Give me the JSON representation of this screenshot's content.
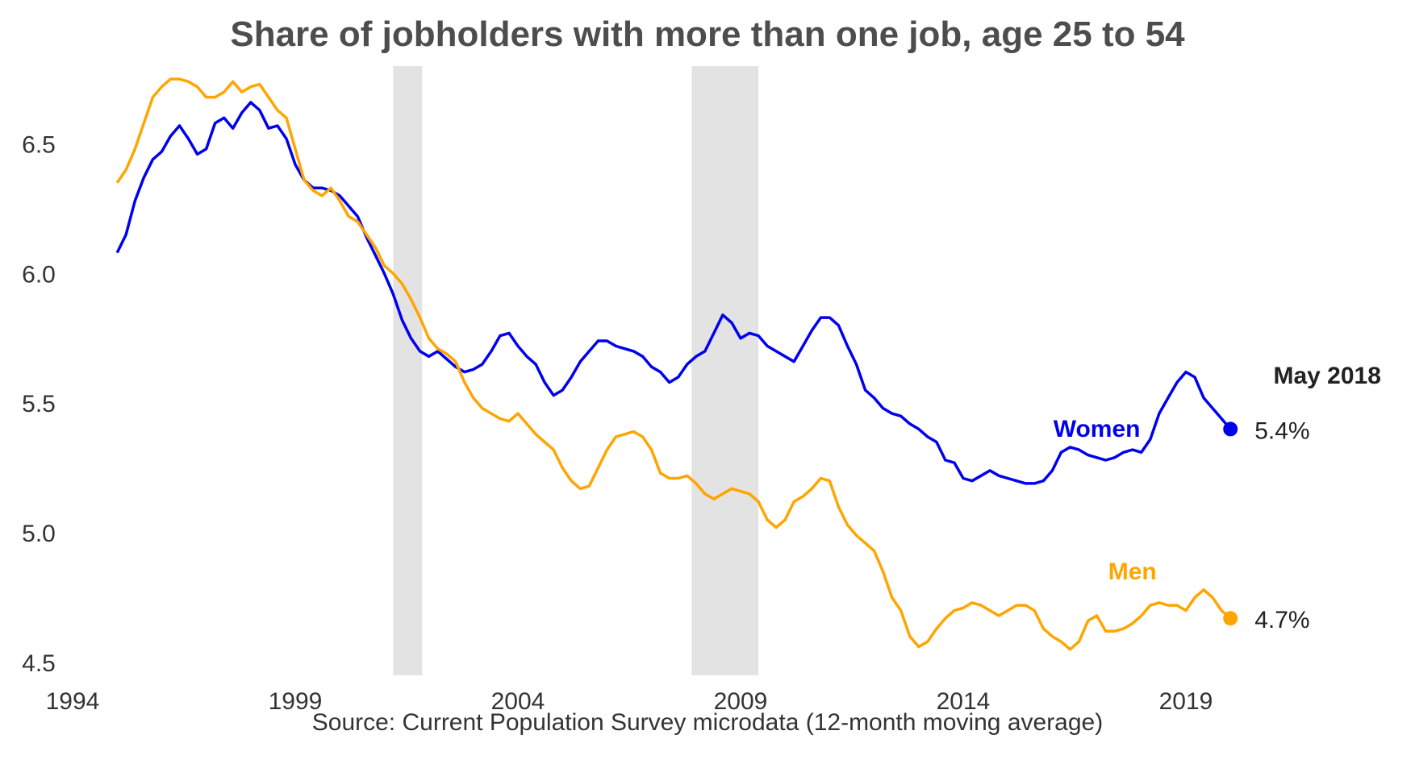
{
  "chart_data": {
    "type": "line",
    "title": "Share of jobholders with more than one job, age 25 to 54",
    "source": "Source: Current Population Survey microdata (12-month moving average)",
    "xlim": [
      1994,
      2019
    ],
    "ylim": [
      4.45,
      6.8
    ],
    "x_ticks": [
      1994,
      1999,
      2004,
      2009,
      2014,
      2019
    ],
    "y_ticks": [
      4.5,
      5.0,
      5.5,
      6.0,
      6.5
    ],
    "grid": false,
    "recessions": [
      [
        2001.2,
        2001.85
      ],
      [
        2007.9,
        2009.4
      ]
    ],
    "annotation": "May 2018",
    "series": [
      {
        "name": "Women",
        "color": "#0000ee",
        "end_label": "5.4%",
        "points": [
          [
            1995.0,
            6.08
          ],
          [
            1995.2,
            6.15
          ],
          [
            1995.4,
            6.28
          ],
          [
            1995.6,
            6.37
          ],
          [
            1995.8,
            6.44
          ],
          [
            1996.0,
            6.47
          ],
          [
            1996.2,
            6.53
          ],
          [
            1996.4,
            6.57
          ],
          [
            1996.6,
            6.52
          ],
          [
            1996.8,
            6.46
          ],
          [
            1997.0,
            6.48
          ],
          [
            1997.2,
            6.58
          ],
          [
            1997.4,
            6.6
          ],
          [
            1997.6,
            6.56
          ],
          [
            1997.8,
            6.62
          ],
          [
            1998.0,
            6.66
          ],
          [
            1998.2,
            6.63
          ],
          [
            1998.4,
            6.56
          ],
          [
            1998.6,
            6.57
          ],
          [
            1998.8,
            6.52
          ],
          [
            1999.0,
            6.42
          ],
          [
            1999.2,
            6.36
          ],
          [
            1999.4,
            6.33
          ],
          [
            1999.6,
            6.33
          ],
          [
            1999.8,
            6.32
          ],
          [
            2000.0,
            6.3
          ],
          [
            2000.2,
            6.26
          ],
          [
            2000.4,
            6.22
          ],
          [
            2000.6,
            6.14
          ],
          [
            2000.8,
            6.07
          ],
          [
            2001.0,
            6.0
          ],
          [
            2001.2,
            5.92
          ],
          [
            2001.4,
            5.82
          ],
          [
            2001.6,
            5.75
          ],
          [
            2001.8,
            5.7
          ],
          [
            2002.0,
            5.68
          ],
          [
            2002.2,
            5.7
          ],
          [
            2002.4,
            5.67
          ],
          [
            2002.6,
            5.64
          ],
          [
            2002.8,
            5.62
          ],
          [
            2003.0,
            5.63
          ],
          [
            2003.2,
            5.65
          ],
          [
            2003.4,
            5.7
          ],
          [
            2003.6,
            5.76
          ],
          [
            2003.8,
            5.77
          ],
          [
            2004.0,
            5.72
          ],
          [
            2004.2,
            5.68
          ],
          [
            2004.4,
            5.65
          ],
          [
            2004.6,
            5.58
          ],
          [
            2004.8,
            5.53
          ],
          [
            2005.0,
            5.55
          ],
          [
            2005.2,
            5.6
          ],
          [
            2005.4,
            5.66
          ],
          [
            2005.6,
            5.7
          ],
          [
            2005.8,
            5.74
          ],
          [
            2006.0,
            5.74
          ],
          [
            2006.2,
            5.72
          ],
          [
            2006.4,
            5.71
          ],
          [
            2006.6,
            5.7
          ],
          [
            2006.8,
            5.68
          ],
          [
            2007.0,
            5.64
          ],
          [
            2007.2,
            5.62
          ],
          [
            2007.4,
            5.58
          ],
          [
            2007.6,
            5.6
          ],
          [
            2007.8,
            5.65
          ],
          [
            2008.0,
            5.68
          ],
          [
            2008.2,
            5.7
          ],
          [
            2008.4,
            5.77
          ],
          [
            2008.6,
            5.84
          ],
          [
            2008.8,
            5.81
          ],
          [
            2009.0,
            5.75
          ],
          [
            2009.2,
            5.77
          ],
          [
            2009.4,
            5.76
          ],
          [
            2009.6,
            5.72
          ],
          [
            2009.8,
            5.7
          ],
          [
            2010.0,
            5.68
          ],
          [
            2010.2,
            5.66
          ],
          [
            2010.4,
            5.72
          ],
          [
            2010.6,
            5.78
          ],
          [
            2010.8,
            5.83
          ],
          [
            2011.0,
            5.83
          ],
          [
            2011.2,
            5.8
          ],
          [
            2011.4,
            5.72
          ],
          [
            2011.6,
            5.65
          ],
          [
            2011.8,
            5.55
          ],
          [
            2012.0,
            5.52
          ],
          [
            2012.2,
            5.48
          ],
          [
            2012.4,
            5.46
          ],
          [
            2012.6,
            5.45
          ],
          [
            2012.8,
            5.42
          ],
          [
            2013.0,
            5.4
          ],
          [
            2013.2,
            5.37
          ],
          [
            2013.4,
            5.35
          ],
          [
            2013.6,
            5.28
          ],
          [
            2013.8,
            5.27
          ],
          [
            2014.0,
            5.21
          ],
          [
            2014.2,
            5.2
          ],
          [
            2014.4,
            5.22
          ],
          [
            2014.6,
            5.24
          ],
          [
            2014.8,
            5.22
          ],
          [
            2015.0,
            5.21
          ],
          [
            2015.2,
            5.2
          ],
          [
            2015.4,
            5.19
          ],
          [
            2015.6,
            5.19
          ],
          [
            2015.8,
            5.2
          ],
          [
            2016.0,
            5.24
          ],
          [
            2016.2,
            5.31
          ],
          [
            2016.4,
            5.33
          ],
          [
            2016.6,
            5.32
          ],
          [
            2016.8,
            5.3
          ],
          [
            2017.0,
            5.29
          ],
          [
            2017.2,
            5.28
          ],
          [
            2017.4,
            5.29
          ],
          [
            2017.6,
            5.31
          ],
          [
            2017.8,
            5.32
          ],
          [
            2018.0,
            5.31
          ],
          [
            2018.2,
            5.36
          ],
          [
            2018.4,
            5.46
          ],
          [
            2018.6,
            5.52
          ],
          [
            2018.8,
            5.58
          ],
          [
            2019.0,
            5.62
          ],
          [
            2019.2,
            5.6
          ],
          [
            2019.4,
            5.52
          ],
          [
            2019.6,
            5.48
          ],
          [
            2019.8,
            5.44
          ],
          [
            2020.0,
            5.4
          ]
        ]
      },
      {
        "name": "Men",
        "color": "#ffa500",
        "end_label": "4.7%",
        "points": [
          [
            1995.0,
            6.35
          ],
          [
            1995.2,
            6.4
          ],
          [
            1995.4,
            6.48
          ],
          [
            1995.6,
            6.58
          ],
          [
            1995.8,
            6.68
          ],
          [
            1996.0,
            6.72
          ],
          [
            1996.2,
            6.75
          ],
          [
            1996.4,
            6.75
          ],
          [
            1996.6,
            6.74
          ],
          [
            1996.8,
            6.72
          ],
          [
            1997.0,
            6.68
          ],
          [
            1997.2,
            6.68
          ],
          [
            1997.4,
            6.7
          ],
          [
            1997.6,
            6.74
          ],
          [
            1997.8,
            6.7
          ],
          [
            1998.0,
            6.72
          ],
          [
            1998.2,
            6.73
          ],
          [
            1998.4,
            6.68
          ],
          [
            1998.6,
            6.63
          ],
          [
            1998.8,
            6.6
          ],
          [
            1999.0,
            6.48
          ],
          [
            1999.2,
            6.36
          ],
          [
            1999.4,
            6.32
          ],
          [
            1999.6,
            6.3
          ],
          [
            1999.8,
            6.33
          ],
          [
            2000.0,
            6.28
          ],
          [
            2000.2,
            6.22
          ],
          [
            2000.4,
            6.2
          ],
          [
            2000.6,
            6.15
          ],
          [
            2000.8,
            6.1
          ],
          [
            2001.0,
            6.03
          ],
          [
            2001.2,
            6.0
          ],
          [
            2001.4,
            5.96
          ],
          [
            2001.6,
            5.9
          ],
          [
            2001.8,
            5.83
          ],
          [
            2002.0,
            5.75
          ],
          [
            2002.2,
            5.71
          ],
          [
            2002.4,
            5.69
          ],
          [
            2002.6,
            5.66
          ],
          [
            2002.8,
            5.58
          ],
          [
            2003.0,
            5.52
          ],
          [
            2003.2,
            5.48
          ],
          [
            2003.4,
            5.46
          ],
          [
            2003.6,
            5.44
          ],
          [
            2003.8,
            5.43
          ],
          [
            2004.0,
            5.46
          ],
          [
            2004.2,
            5.42
          ],
          [
            2004.4,
            5.38
          ],
          [
            2004.6,
            5.35
          ],
          [
            2004.8,
            5.32
          ],
          [
            2005.0,
            5.25
          ],
          [
            2005.2,
            5.2
          ],
          [
            2005.4,
            5.17
          ],
          [
            2005.6,
            5.18
          ],
          [
            2005.8,
            5.25
          ],
          [
            2006.0,
            5.32
          ],
          [
            2006.2,
            5.37
          ],
          [
            2006.4,
            5.38
          ],
          [
            2006.6,
            5.39
          ],
          [
            2006.8,
            5.37
          ],
          [
            2007.0,
            5.32
          ],
          [
            2007.2,
            5.23
          ],
          [
            2007.4,
            5.21
          ],
          [
            2007.6,
            5.21
          ],
          [
            2007.8,
            5.22
          ],
          [
            2008.0,
            5.19
          ],
          [
            2008.2,
            5.15
          ],
          [
            2008.4,
            5.13
          ],
          [
            2008.6,
            5.15
          ],
          [
            2008.8,
            5.17
          ],
          [
            2009.0,
            5.16
          ],
          [
            2009.2,
            5.15
          ],
          [
            2009.4,
            5.12
          ],
          [
            2009.6,
            5.05
          ],
          [
            2009.8,
            5.02
          ],
          [
            2010.0,
            5.05
          ],
          [
            2010.2,
            5.12
          ],
          [
            2010.4,
            5.14
          ],
          [
            2010.6,
            5.17
          ],
          [
            2010.8,
            5.21
          ],
          [
            2011.0,
            5.2
          ],
          [
            2011.2,
            5.1
          ],
          [
            2011.4,
            5.03
          ],
          [
            2011.6,
            4.99
          ],
          [
            2011.8,
            4.96
          ],
          [
            2012.0,
            4.93
          ],
          [
            2012.2,
            4.85
          ],
          [
            2012.4,
            4.75
          ],
          [
            2012.6,
            4.7
          ],
          [
            2012.8,
            4.6
          ],
          [
            2013.0,
            4.56
          ],
          [
            2013.2,
            4.58
          ],
          [
            2013.4,
            4.63
          ],
          [
            2013.6,
            4.67
          ],
          [
            2013.8,
            4.7
          ],
          [
            2014.0,
            4.71
          ],
          [
            2014.2,
            4.73
          ],
          [
            2014.4,
            4.72
          ],
          [
            2014.6,
            4.7
          ],
          [
            2014.8,
            4.68
          ],
          [
            2015.0,
            4.7
          ],
          [
            2015.2,
            4.72
          ],
          [
            2015.4,
            4.72
          ],
          [
            2015.6,
            4.7
          ],
          [
            2015.8,
            4.63
          ],
          [
            2016.0,
            4.6
          ],
          [
            2016.2,
            4.58
          ],
          [
            2016.4,
            4.55
          ],
          [
            2016.6,
            4.58
          ],
          [
            2016.8,
            4.66
          ],
          [
            2017.0,
            4.68
          ],
          [
            2017.2,
            4.62
          ],
          [
            2017.4,
            4.62
          ],
          [
            2017.6,
            4.63
          ],
          [
            2017.8,
            4.65
          ],
          [
            2018.0,
            4.68
          ],
          [
            2018.2,
            4.72
          ],
          [
            2018.4,
            4.73
          ],
          [
            2018.6,
            4.72
          ],
          [
            2018.8,
            4.72
          ],
          [
            2019.0,
            4.7
          ],
          [
            2019.2,
            4.75
          ],
          [
            2019.4,
            4.78
          ],
          [
            2019.6,
            4.75
          ],
          [
            2019.8,
            4.7
          ],
          [
            2020.0,
            4.67
          ]
        ]
      }
    ]
  }
}
